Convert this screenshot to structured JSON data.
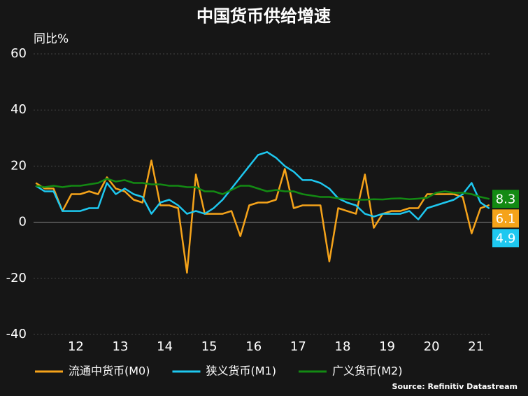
{
  "chart_data": {
    "type": "line",
    "title": "中国货币供给增速",
    "y_label": "同比%",
    "source": "Source: Refinitiv Datastream",
    "x": [
      11.1,
      11.3,
      11.5,
      11.7,
      11.9,
      12.1,
      12.3,
      12.5,
      12.7,
      12.9,
      13.1,
      13.3,
      13.5,
      13.7,
      13.9,
      14.1,
      14.3,
      14.5,
      14.7,
      14.9,
      15.1,
      15.3,
      15.5,
      15.7,
      15.9,
      16.1,
      16.3,
      16.5,
      16.7,
      16.9,
      17.1,
      17.3,
      17.5,
      17.7,
      17.9,
      18.1,
      18.3,
      18.5,
      18.7,
      18.9,
      19.1,
      19.3,
      19.5,
      19.7,
      19.9,
      20.1,
      20.3,
      20.5,
      20.7,
      20.9,
      21.1,
      21.3
    ],
    "series": [
      {
        "name": "流通中货币(M0)",
        "color": "#f5a31a",
        "values": [
          14,
          12,
          12,
          4,
          10,
          10,
          11,
          10,
          16,
          12,
          11,
          8,
          7,
          22,
          6,
          6,
          5,
          -18,
          17,
          3,
          3,
          3,
          4,
          -5,
          6,
          7,
          7,
          8,
          19,
          5,
          6,
          6,
          6,
          -14,
          5,
          4,
          3,
          17,
          -2,
          3,
          4,
          4,
          5,
          5,
          10,
          10,
          10,
          10,
          9,
          -4,
          5,
          6.1
        ]
      },
      {
        "name": "狭义货币(M1)",
        "color": "#1ec8f0",
        "values": [
          13,
          11,
          11,
          4,
          4,
          4,
          5,
          5,
          14,
          10,
          12,
          10,
          9,
          3,
          7,
          8,
          6,
          3,
          4,
          3,
          5,
          8,
          12,
          16,
          20,
          24,
          25,
          23,
          20,
          18,
          15,
          15,
          14,
          12,
          8.5,
          7,
          6,
          3,
          2,
          3,
          3,
          3,
          4,
          1,
          5,
          6,
          7,
          8,
          10,
          14,
          7,
          4.9
        ]
      },
      {
        "name": "广义货币(M2)",
        "color": "#138a13",
        "values": [
          13,
          12.5,
          13,
          12.5,
          13,
          13,
          13.5,
          14,
          15.5,
          14.5,
          15,
          14,
          14,
          13.5,
          13.5,
          13,
          13,
          12.5,
          12.5,
          11,
          11,
          10,
          11.5,
          13,
          13,
          12,
          11,
          11.5,
          11,
          11,
          10,
          9.5,
          9,
          9,
          8.5,
          8.2,
          8,
          8,
          8.2,
          8.1,
          8.4,
          8.5,
          8.2,
          8.4,
          8.7,
          10.5,
          11,
          10.5,
          10.5,
          10,
          9,
          8.3
        ]
      }
    ],
    "xlim": [
      11.05,
      21.35
    ],
    "xticks": [
      12,
      13,
      14,
      15,
      16,
      17,
      18,
      19,
      20,
      21
    ],
    "ylim": [
      -40,
      60
    ],
    "yticks": [
      -40,
      -20,
      0,
      20,
      40,
      60
    ],
    "grid": true
  }
}
